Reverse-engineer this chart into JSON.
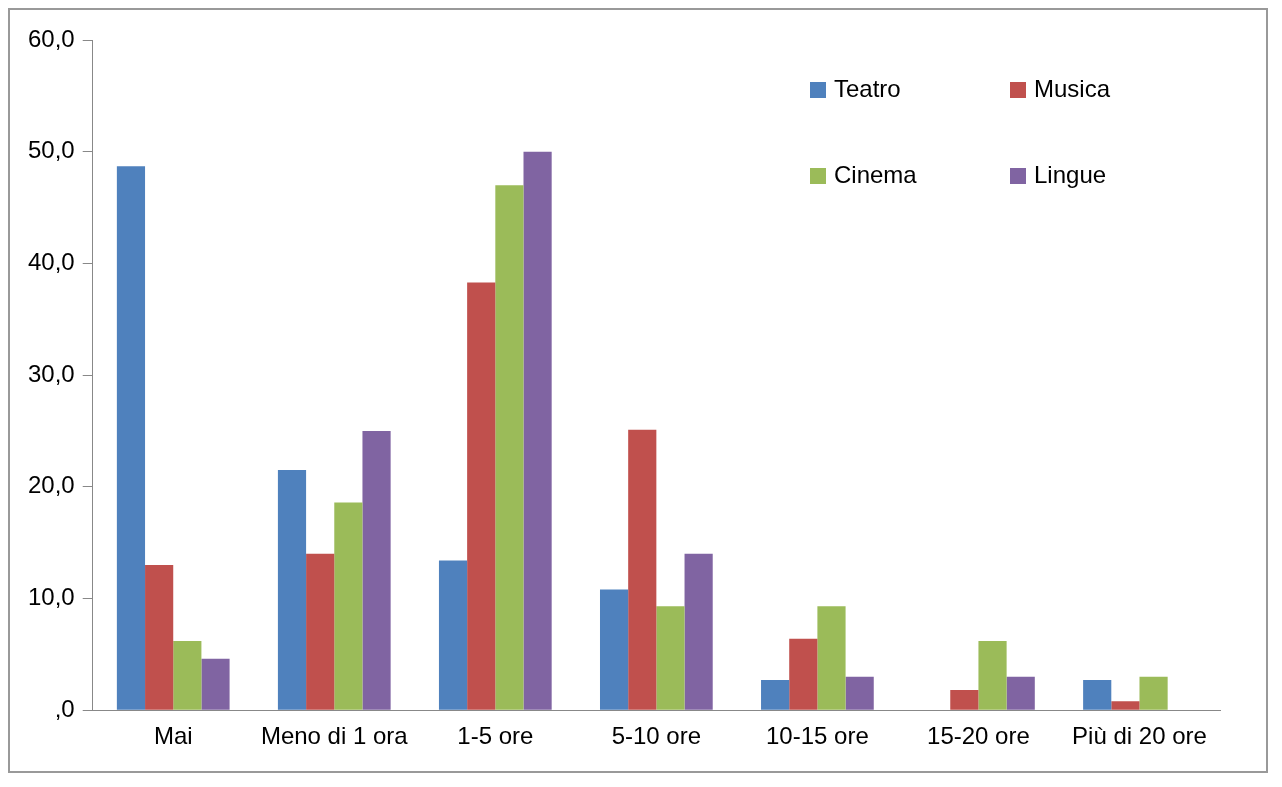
{
  "chart_data": {
    "type": "bar",
    "categories": [
      "Mai",
      "Meno di 1 ora",
      "1-5 ore",
      "5-10 ore",
      "10-15 ore",
      "15-20 ore",
      "Più di 20 ore"
    ],
    "series": [
      {
        "name": "Teatro",
        "color": "#4f81bd",
        "values": [
          48.7,
          21.5,
          13.4,
          10.8,
          2.7,
          0,
          2.7
        ]
      },
      {
        "name": "Musica",
        "color": "#c0504d",
        "values": [
          13.0,
          14.0,
          38.3,
          25.1,
          6.4,
          1.8,
          0.8
        ]
      },
      {
        "name": "Cinema",
        "color": "#9bbb59",
        "values": [
          6.2,
          18.6,
          47.0,
          9.3,
          9.3,
          6.2,
          3.0
        ]
      },
      {
        "name": "Lingue",
        "color": "#8064a2",
        "values": [
          4.6,
          25.0,
          50.0,
          14.0,
          3.0,
          3.0,
          0
        ]
      }
    ],
    "ylim": [
      0,
      60
    ],
    "yticks": [
      {
        "value": 0,
        "label": ",0"
      },
      {
        "value": 10,
        "label": "10,0"
      },
      {
        "value": 20,
        "label": "20,0"
      },
      {
        "value": 30,
        "label": "30,0"
      },
      {
        "value": 40,
        "label": "40,0"
      },
      {
        "value": 50,
        "label": "50,0"
      },
      {
        "value": 60,
        "label": "60,0"
      }
    ],
    "grid": false,
    "legend": "top right"
  }
}
